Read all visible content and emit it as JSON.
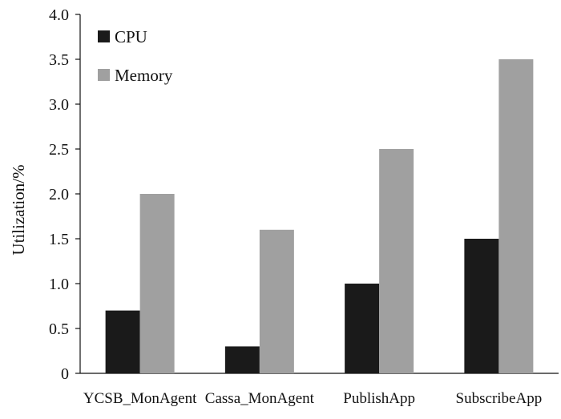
{
  "chart_data": {
    "type": "bar",
    "categories": [
      "YCSB_MonAgent",
      "Cassa_MonAgent",
      "PublishApp",
      "SubscribeApp"
    ],
    "series": [
      {
        "name": "CPU",
        "values": [
          0.7,
          0.3,
          1.0,
          1.5
        ],
        "color": "#1a1a1a"
      },
      {
        "name": "Memory",
        "values": [
          2.0,
          1.6,
          2.5,
          3.5
        ],
        "color": "#a0a0a0"
      }
    ],
    "title": "",
    "xlabel": "",
    "ylabel": "Utilization/%",
    "ylim": [
      0,
      4.0
    ],
    "yticks": [
      "0",
      "0.5",
      "1.0",
      "1.5",
      "2.0",
      "2.5",
      "3.0",
      "3.5",
      "4.0"
    ],
    "grid": false,
    "legend_position": "top-left"
  }
}
